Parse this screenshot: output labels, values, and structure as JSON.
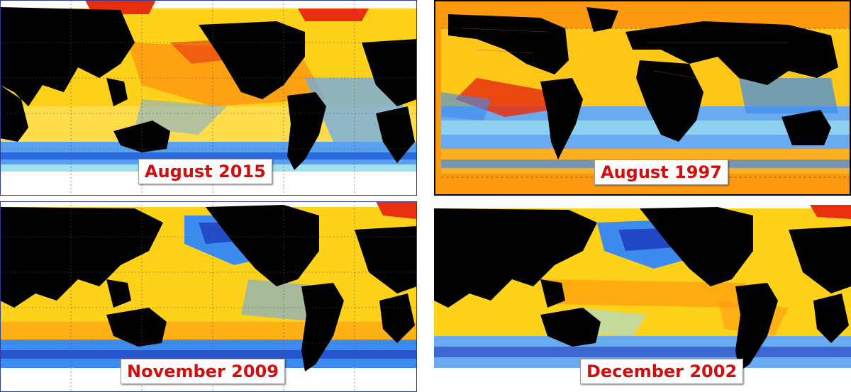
{
  "panels": [
    {
      "id": "aug2015",
      "label": "August 2015",
      "projection": "pacific-centered",
      "style": "yellow-dominant"
    },
    {
      "id": "aug1997",
      "label": "August 1997",
      "projection": "atlantic-centered",
      "style": "orange-dominant"
    },
    {
      "id": "nov2009",
      "label": "November 2009",
      "projection": "pacific-centered",
      "style": "yellow-dominant"
    },
    {
      "id": "dec2002",
      "label": "December 2002",
      "projection": "pacific-centered",
      "style": "yellow-dominant"
    }
  ],
  "colors": {
    "label_text": "#d10e0e",
    "land": "#000000",
    "ice": "#ffffff",
    "warm_strong": "#e83010",
    "warm": "#ff9a10",
    "neutral_warm": "#ffd21a",
    "neutral": "#9ee0f0",
    "cool": "#3c8cf0",
    "cool_strong": "#1830b8"
  }
}
